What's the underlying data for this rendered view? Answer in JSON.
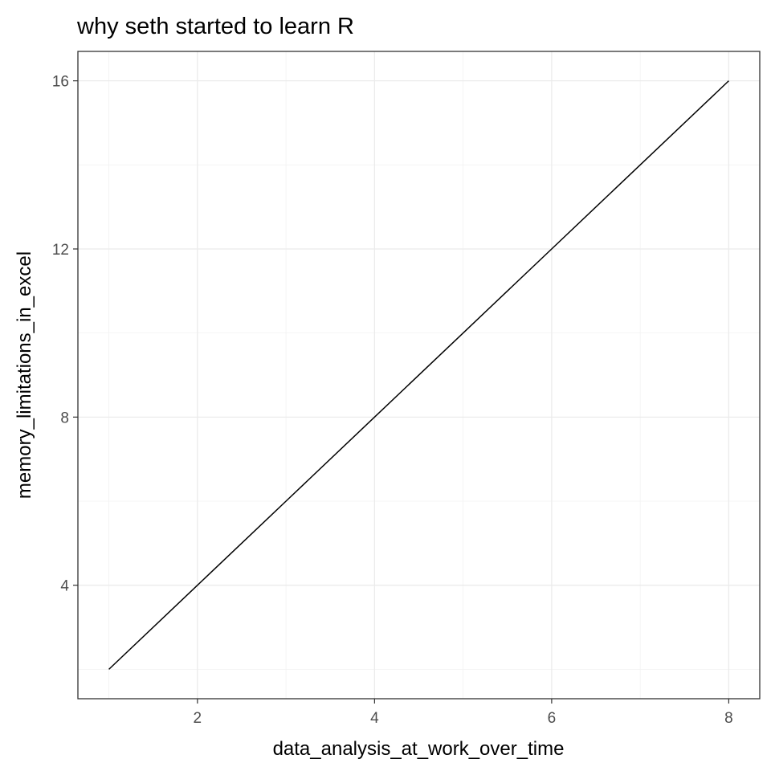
{
  "chart_data": {
    "type": "line",
    "title": "why seth started to learn R",
    "xlabel": "data_analysis_at_work_over_time",
    "ylabel": "memory_limitations_in_excel",
    "x": [
      1,
      2,
      3,
      4,
      5,
      6,
      7,
      8
    ],
    "series": [
      {
        "values": [
          2,
          4,
          6,
          8,
          10,
          12,
          14,
          16
        ]
      }
    ],
    "xlim": [
      0.65,
      8.35
    ],
    "ylim": [
      1.3,
      16.7
    ],
    "x_ticks": [
      2,
      4,
      6,
      8
    ],
    "x_tick_labels": [
      "2",
      "4",
      "6",
      "8"
    ],
    "y_ticks": [
      4,
      8,
      12,
      16
    ],
    "y_tick_labels": [
      "4",
      "8",
      "12",
      "16"
    ],
    "x_minor_ticks": [
      1,
      3,
      5,
      7
    ],
    "y_minor_ticks": [
      2,
      6,
      10,
      14
    ],
    "grid": true,
    "legend": "none",
    "colors": {
      "line": "#000000",
      "grid_major": "#ebebeb",
      "grid_minor": "#f2f2f2",
      "panel_border": "#333333",
      "tick_label": "#4d4d4d"
    }
  }
}
